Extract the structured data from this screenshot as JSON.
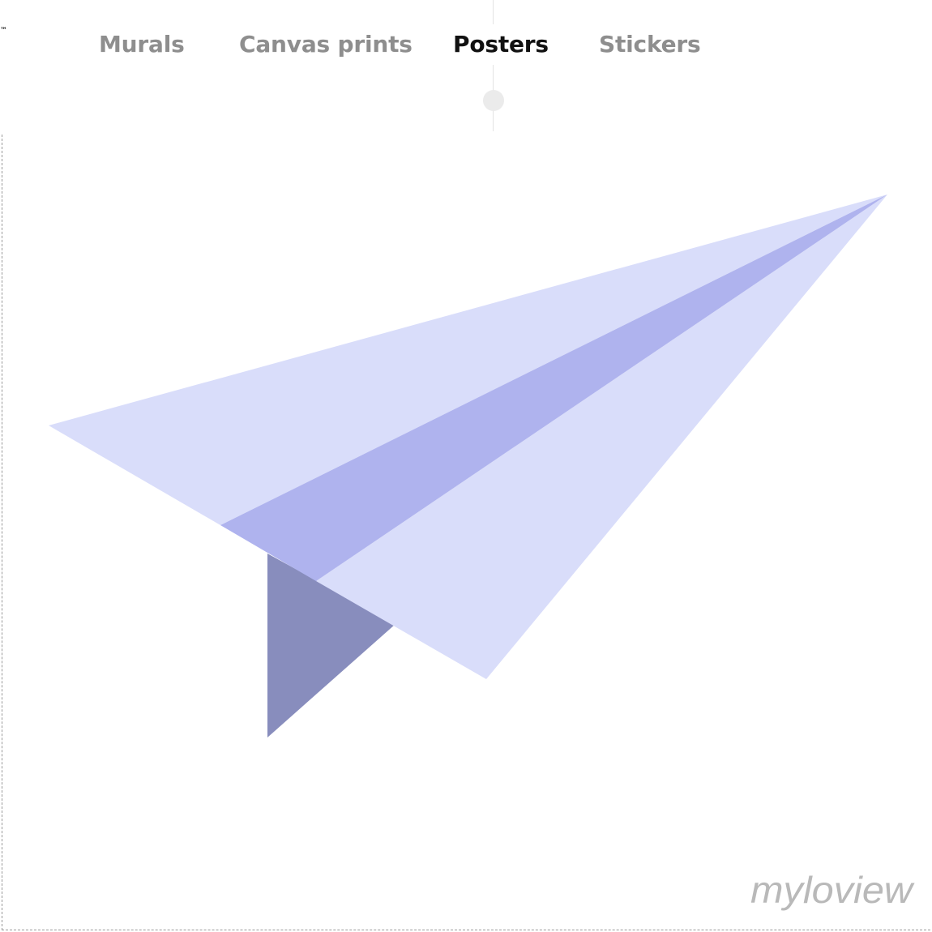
{
  "brand_mark": "™",
  "tabs": [
    {
      "label": "Murals",
      "active": false
    },
    {
      "label": "Canvas prints",
      "active": false
    },
    {
      "label": "Posters",
      "active": true
    },
    {
      "label": "Stickers",
      "active": false
    }
  ],
  "artwork": {
    "subject_icon": "paper-plane-icon",
    "colors": {
      "light": "#d9ddfa",
      "mid": "#afb3ee",
      "dark": "#888dbd"
    }
  },
  "watermark": {
    "text": "myloview",
    "color": "#b9b9b9"
  }
}
